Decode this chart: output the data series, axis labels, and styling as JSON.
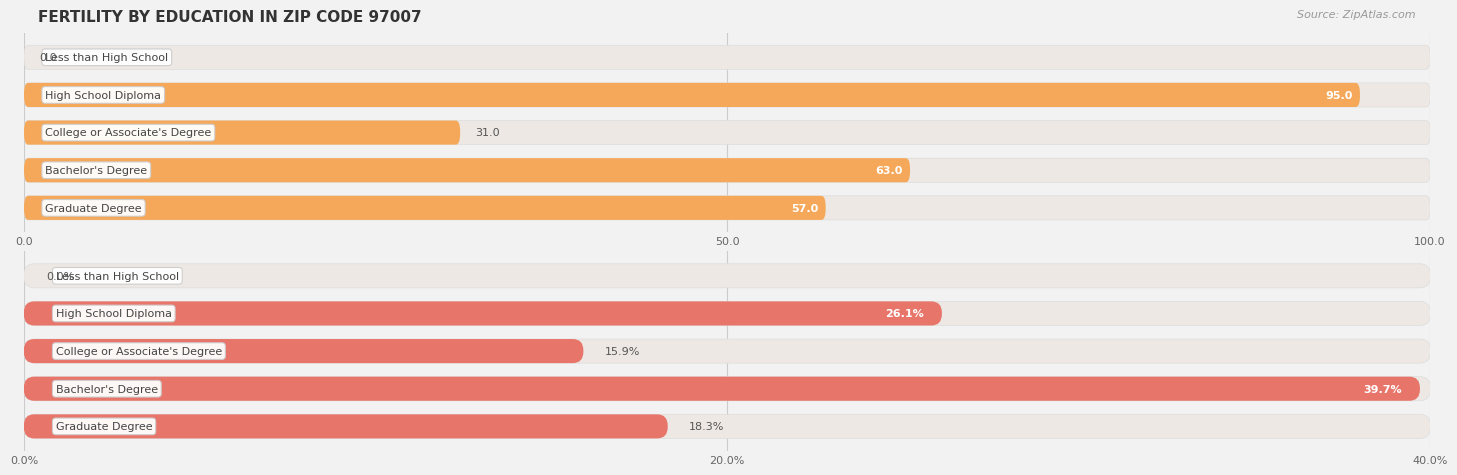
{
  "title": "FERTILITY BY EDUCATION IN ZIP CODE 97007",
  "source": "Source: ZipAtlas.com",
  "top_chart": {
    "categories": [
      "Less than High School",
      "High School Diploma",
      "College or Associate's Degree",
      "Bachelor's Degree",
      "Graduate Degree"
    ],
    "values": [
      0.0,
      95.0,
      31.0,
      63.0,
      57.0
    ],
    "xlim": [
      0,
      100
    ],
    "xticks": [
      0.0,
      50.0,
      100.0
    ],
    "xtick_labels": [
      "0.0",
      "50.0",
      "100.0"
    ],
    "bar_color": "#F5A85A",
    "bar_bg_color": "#EDE8E3",
    "background_color": "#F2F2F2",
    "value_inside_threshold": 50
  },
  "bottom_chart": {
    "categories": [
      "Less than High School",
      "High School Diploma",
      "College or Associate's Degree",
      "Bachelor's Degree",
      "Graduate Degree"
    ],
    "values": [
      0.0,
      26.1,
      15.9,
      39.7,
      18.3
    ],
    "xlim": [
      0,
      40
    ],
    "xticks": [
      0.0,
      20.0,
      40.0
    ],
    "xtick_labels": [
      "0.0%",
      "20.0%",
      "40.0%"
    ],
    "bar_color": "#E8756A",
    "bar_bg_color": "#EDE8E3",
    "background_color": "#F2F2F2",
    "value_inside_threshold": 20
  },
  "title_fontsize": 11,
  "source_fontsize": 8,
  "label_fontsize": 8,
  "tick_fontsize": 8,
  "category_fontsize": 8
}
